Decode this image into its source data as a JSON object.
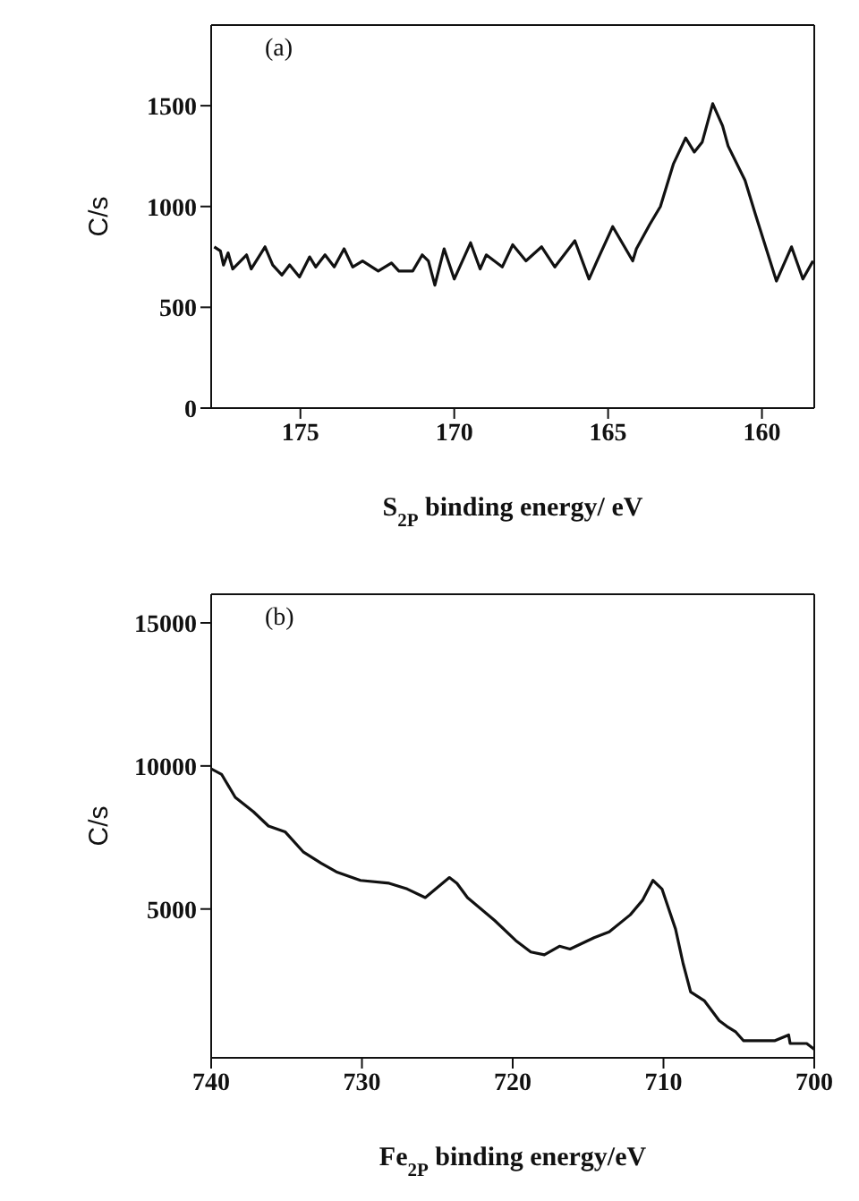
{
  "chart_data": [
    {
      "type": "line",
      "annotations": [
        "(a)"
      ],
      "xlabel": "S$_{2P}$ binding energy/ eV",
      "ylabel": "C/s",
      "xlim": [
        177.9,
        158.3
      ],
      "xticks": [
        175,
        170,
        165,
        160
      ],
      "ylim": [
        0,
        1900
      ],
      "yticks": [
        0,
        500,
        1000,
        1500
      ],
      "series": [
        {
          "color": "#111111",
          "x": [
            177.8,
            177.6,
            177.5,
            177.35,
            177.2,
            176.75,
            176.6,
            176.15,
            175.9,
            175.6,
            175.35,
            175.03,
            174.7,
            174.5,
            174.2,
            173.9,
            173.58,
            173.3,
            172.98,
            172.47,
            172.04,
            171.8,
            171.35,
            171.04,
            170.84,
            170.63,
            170.33,
            170.0,
            169.47,
            169.16,
            168.96,
            168.44,
            168.1,
            167.67,
            167.16,
            166.73,
            166.08,
            165.62,
            165.36,
            164.85,
            164.2,
            164.08,
            163.65,
            163.3,
            162.88,
            162.48,
            162.2,
            161.94,
            161.6,
            161.28,
            161.1,
            160.55,
            160.21,
            159.53,
            159.04,
            158.67,
            158.34
          ],
          "values": [
            800,
            780,
            710,
            770,
            690,
            760,
            690,
            800,
            710,
            660,
            710,
            650,
            750,
            700,
            760,
            700,
            790,
            700,
            730,
            680,
            720,
            680,
            680,
            760,
            730,
            610,
            790,
            640,
            820,
            690,
            760,
            700,
            810,
            730,
            800,
            700,
            830,
            640,
            730,
            900,
            730,
            790,
            910,
            1000,
            1210,
            1340,
            1270,
            1320,
            1510,
            1400,
            1300,
            1130,
            960,
            630,
            800,
            640,
            730
          ]
        }
      ]
    },
    {
      "type": "line",
      "annotations": [
        "(b)"
      ],
      "xlabel": "Fe$_{2P}$ binding energy/eV",
      "ylabel": "C/s",
      "xlim": [
        740,
        700
      ],
      "xticks": [
        740,
        730,
        720,
        710,
        700
      ],
      "ylim": [
        -200,
        16000
      ],
      "yticks": [
        5000,
        10000,
        15000
      ],
      "series": [
        {
          "color": "#111111",
          "x": [
            740,
            739.3,
            738.4,
            737.2,
            736.2,
            735.1,
            733.9,
            732.7,
            731.7,
            730.1,
            728.2,
            727.0,
            725.8,
            724.2,
            723.7,
            723.0,
            721.2,
            719.8,
            718.8,
            717.9,
            716.9,
            716.2,
            714.6,
            713.6,
            712.2,
            711.4,
            710.7,
            710.1,
            709.2,
            708.7,
            708.2,
            707.3,
            706.3,
            705.8,
            705.2,
            704.7,
            702.6,
            701.7,
            701.6,
            700.5,
            700
          ],
          "values": [
            9900,
            9700,
            8900,
            8400,
            7900,
            7700,
            7000,
            6600,
            6300,
            6000,
            5900,
            5700,
            5400,
            6100,
            5900,
            5400,
            4600,
            3900,
            3500,
            3400,
            3700,
            3600,
            4000,
            4200,
            4800,
            5300,
            6000,
            5700,
            4300,
            3100,
            2100,
            1800,
            1100,
            900,
            700,
            400,
            400,
            600,
            300,
            300,
            100
          ]
        }
      ]
    }
  ]
}
